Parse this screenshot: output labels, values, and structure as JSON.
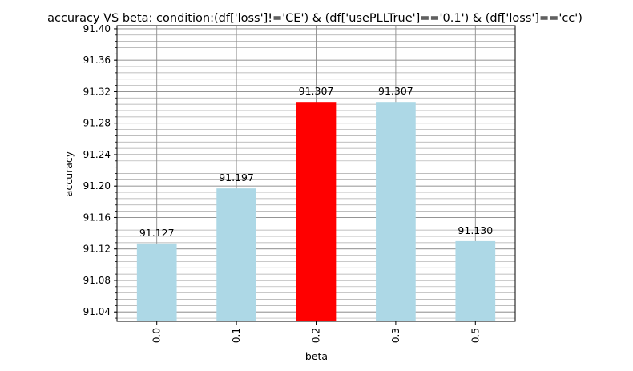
{
  "chart_data": {
    "type": "bar",
    "title": "accuracy VS beta: condition:(df['loss']!='CE') & (df['usePLLTrue']=='0.1') & (df['loss']=='cc')",
    "xlabel": "beta",
    "ylabel": "accuracy",
    "categories": [
      "0.0",
      "0.1",
      "0.2",
      "0.3",
      "0.5"
    ],
    "values": [
      91.127,
      91.197,
      91.307,
      91.307,
      91.13
    ],
    "data_labels": [
      "91.127",
      "91.197",
      "91.307",
      "91.307",
      "91.130"
    ],
    "bar_colors": [
      "#add8e6",
      "#add8e6",
      "#ff0000",
      "#add8e6",
      "#add8e6"
    ],
    "ylim": [
      91.028,
      91.404
    ],
    "yticks": [
      91.04,
      91.08,
      91.12,
      91.16,
      91.2,
      91.24,
      91.28,
      91.32,
      91.36,
      91.4
    ],
    "ytick_labels": [
      "91.04",
      "91.08",
      "91.12",
      "91.16",
      "91.20",
      "91.24",
      "91.28",
      "91.32",
      "91.36",
      "91.40"
    ],
    "minor_ytick_step": 0.008,
    "grid": true,
    "xtick_rotation": 90
  }
}
